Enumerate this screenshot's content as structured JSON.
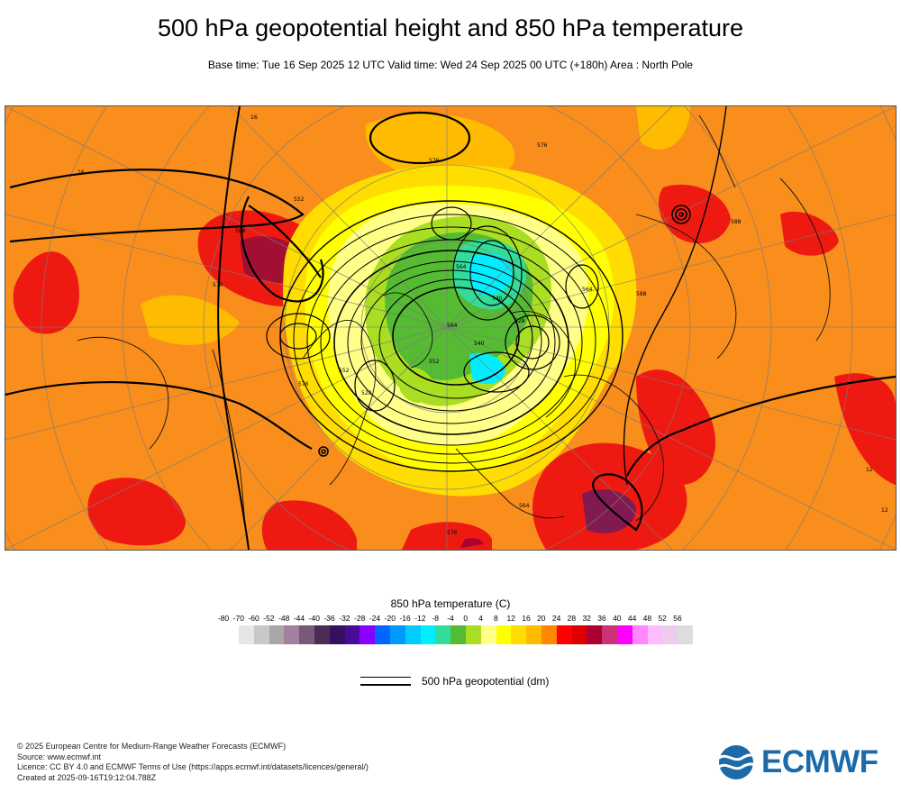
{
  "header": {
    "title": "500 hPa geopotential height and 850 hPa temperature",
    "subtitle": "Base time: Tue 16 Sep 2025 12 UTC Valid time: Wed 24 Sep 2025 00 UTC (+180h) Area : North Pole"
  },
  "map": {
    "area": "North Pole",
    "contour_labels": [
      "16",
      "16",
      "576",
      "576",
      "552",
      "564",
      "588",
      "540",
      "528",
      "564",
      "552",
      "576",
      "588",
      "576",
      "564",
      "588",
      "540",
      "528",
      "564",
      "552",
      "576",
      "12",
      "12"
    ]
  },
  "legend": {
    "title": "850 hPa temperature (C)",
    "ticks": [
      "-80",
      "-70",
      "-60",
      "-52",
      "-48",
      "-44",
      "-40",
      "-36",
      "-32",
      "-28",
      "-24",
      "-20",
      "-16",
      "-12",
      "-8",
      "-4",
      "0",
      "4",
      "8",
      "12",
      "16",
      "20",
      "24",
      "28",
      "32",
      "36",
      "40",
      "44",
      "48",
      "52",
      "56"
    ],
    "colors": [
      "#e6e6e6",
      "#c8c8c8",
      "#a8a8a8",
      "#a57fa0",
      "#7a5878",
      "#4a2d52",
      "#350f60",
      "#4c0a9a",
      "#8a00ff",
      "#0066ff",
      "#0099ff",
      "#00ccff",
      "#00eeff",
      "#33dd99",
      "#55bb33",
      "#aade22",
      "#ffff88",
      "#ffff00",
      "#ffdd00",
      "#ffbb00",
      "#ff8800",
      "#ff0000",
      "#dd0000",
      "#aa0033",
      "#cc3377",
      "#ff00ff",
      "#ff88ff",
      "#ffbbff",
      "#eeccee",
      "#dddddd"
    ]
  },
  "contour_key": {
    "label": "500 hPa geopotential (dm)"
  },
  "footer": {
    "lines": [
      "© 2025 European Centre for Medium-Range Weather Forecasts (ECMWF)",
      "Source: www.ecmwf.int",
      "Licence: CC BY 4.0 and ECMWF Terms of Use (https://apps.ecmwf.int/datasets/licences/general/)",
      "Created at 2025-09-16T19:12:04.788Z"
    ]
  },
  "logo": {
    "text": "ECMWF",
    "color": "#1c6aa8"
  }
}
